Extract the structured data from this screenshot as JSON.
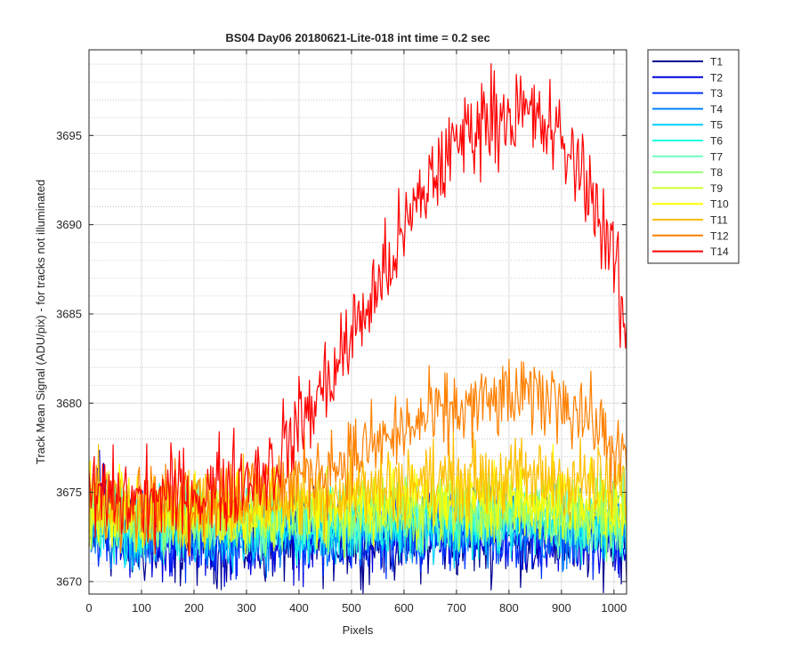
{
  "chart_data": {
    "type": "line",
    "title": "BS04 Day06 20180621-Lite-018 int time = 0.2 sec",
    "xlabel": "Pixels",
    "ylabel": "Track Mean Signal (ADU/pix) - for tracks not illuminated",
    "xlim": [
      0,
      1024
    ],
    "ylim": [
      3669.3,
      3699.8
    ],
    "xticks": [
      0,
      100,
      200,
      300,
      400,
      500,
      600,
      700,
      800,
      900,
      1000
    ],
    "yticks": [
      3670,
      3675,
      3680,
      3685,
      3690,
      3695
    ],
    "grid": "major solid, minor dotted",
    "legend_position": "outside-top-right",
    "series": [
      {
        "name": "T1",
        "color": "#00008f",
        "base": [
          [
            0,
            3672.6
          ],
          [
            100,
            3672.0
          ],
          [
            300,
            3672.1
          ],
          [
            500,
            3672.3
          ],
          [
            700,
            3672.4
          ],
          [
            900,
            3672.3
          ],
          [
            1024,
            3672.2
          ]
        ],
        "noise": 1.1
      },
      {
        "name": "T2",
        "color": "#0000df",
        "base": [
          [
            0,
            3673.0
          ],
          [
            20,
            3676.5
          ],
          [
            40,
            3672.8
          ],
          [
            100,
            3672.3
          ],
          [
            300,
            3672.4
          ],
          [
            600,
            3672.6
          ],
          [
            1024,
            3672.4
          ]
        ],
        "noise": 1.1
      },
      {
        "name": "T3",
        "color": "#0030ff",
        "base": [
          [
            0,
            3672.8
          ],
          [
            100,
            3672.4
          ],
          [
            400,
            3672.6
          ],
          [
            700,
            3672.8
          ],
          [
            1024,
            3672.6
          ]
        ],
        "noise": 1.0
      },
      {
        "name": "T4",
        "color": "#0080ff",
        "base": [
          [
            0,
            3673.0
          ],
          [
            100,
            3672.6
          ],
          [
            400,
            3672.8
          ],
          [
            700,
            3673.0
          ],
          [
            1024,
            3672.8
          ]
        ],
        "noise": 1.0
      },
      {
        "name": "T5",
        "color": "#00cfff",
        "base": [
          [
            0,
            3673.2
          ],
          [
            100,
            3672.8
          ],
          [
            400,
            3673.0
          ],
          [
            700,
            3673.2
          ],
          [
            1024,
            3673.0
          ]
        ],
        "noise": 1.0
      },
      {
        "name": "T6",
        "color": "#20ffdf",
        "base": [
          [
            0,
            3673.4
          ],
          [
            100,
            3673.0
          ],
          [
            400,
            3673.3
          ],
          [
            700,
            3673.5
          ],
          [
            1024,
            3673.3
          ]
        ],
        "noise": 1.0
      },
      {
        "name": "T7",
        "color": "#70ffbf",
        "base": [
          [
            0,
            3673.6
          ],
          [
            100,
            3673.2
          ],
          [
            400,
            3673.5
          ],
          [
            700,
            3673.7
          ],
          [
            1024,
            3673.5
          ]
        ],
        "noise": 1.0
      },
      {
        "name": "T8",
        "color": "#8fff70",
        "base": [
          [
            0,
            3673.8
          ],
          [
            100,
            3673.4
          ],
          [
            400,
            3673.7
          ],
          [
            700,
            3674.0
          ],
          [
            1024,
            3673.7
          ]
        ],
        "noise": 1.0
      },
      {
        "name": "T9",
        "color": "#cfff30",
        "base": [
          [
            0,
            3674.0
          ],
          [
            100,
            3673.6
          ],
          [
            400,
            3674.0
          ],
          [
            700,
            3674.3
          ],
          [
            1024,
            3674.0
          ]
        ],
        "noise": 1.0
      },
      {
        "name": "T10",
        "color": "#ffff00",
        "base": [
          [
            0,
            3674.2
          ],
          [
            100,
            3673.8
          ],
          [
            400,
            3674.3
          ],
          [
            700,
            3674.8
          ],
          [
            900,
            3674.8
          ],
          [
            1024,
            3674.4
          ]
        ],
        "noise": 1.0
      },
      {
        "name": "T11",
        "color": "#ffbf00",
        "base": [
          [
            0,
            3674.6
          ],
          [
            100,
            3674.0
          ],
          [
            400,
            3674.8
          ],
          [
            700,
            3675.8
          ],
          [
            900,
            3675.8
          ],
          [
            1024,
            3675.2
          ]
        ],
        "noise": 1.1
      },
      {
        "name": "T12",
        "color": "#ff8000",
        "base": [
          [
            0,
            3674.8
          ],
          [
            100,
            3674.3
          ],
          [
            350,
            3675.2
          ],
          [
            500,
            3677.0
          ],
          [
            650,
            3679.2
          ],
          [
            800,
            3680.3
          ],
          [
            900,
            3680.3
          ],
          [
            960,
            3679.0
          ],
          [
            1024,
            3676.5
          ]
        ],
        "noise": 1.1
      },
      {
        "name": "T14",
        "color": "#ff0000",
        "base": [
          [
            0,
            3674.8
          ],
          [
            100,
            3674.5
          ],
          [
            250,
            3675.2
          ],
          [
            350,
            3676.5
          ],
          [
            450,
            3681.0
          ],
          [
            550,
            3686.5
          ],
          [
            650,
            3692.5
          ],
          [
            720,
            3695.3
          ],
          [
            780,
            3696.3
          ],
          [
            830,
            3696.2
          ],
          [
            880,
            3695.3
          ],
          [
            950,
            3692.5
          ],
          [
            1000,
            3688.0
          ],
          [
            1024,
            3683.5
          ]
        ],
        "noise": 1.3
      }
    ]
  }
}
